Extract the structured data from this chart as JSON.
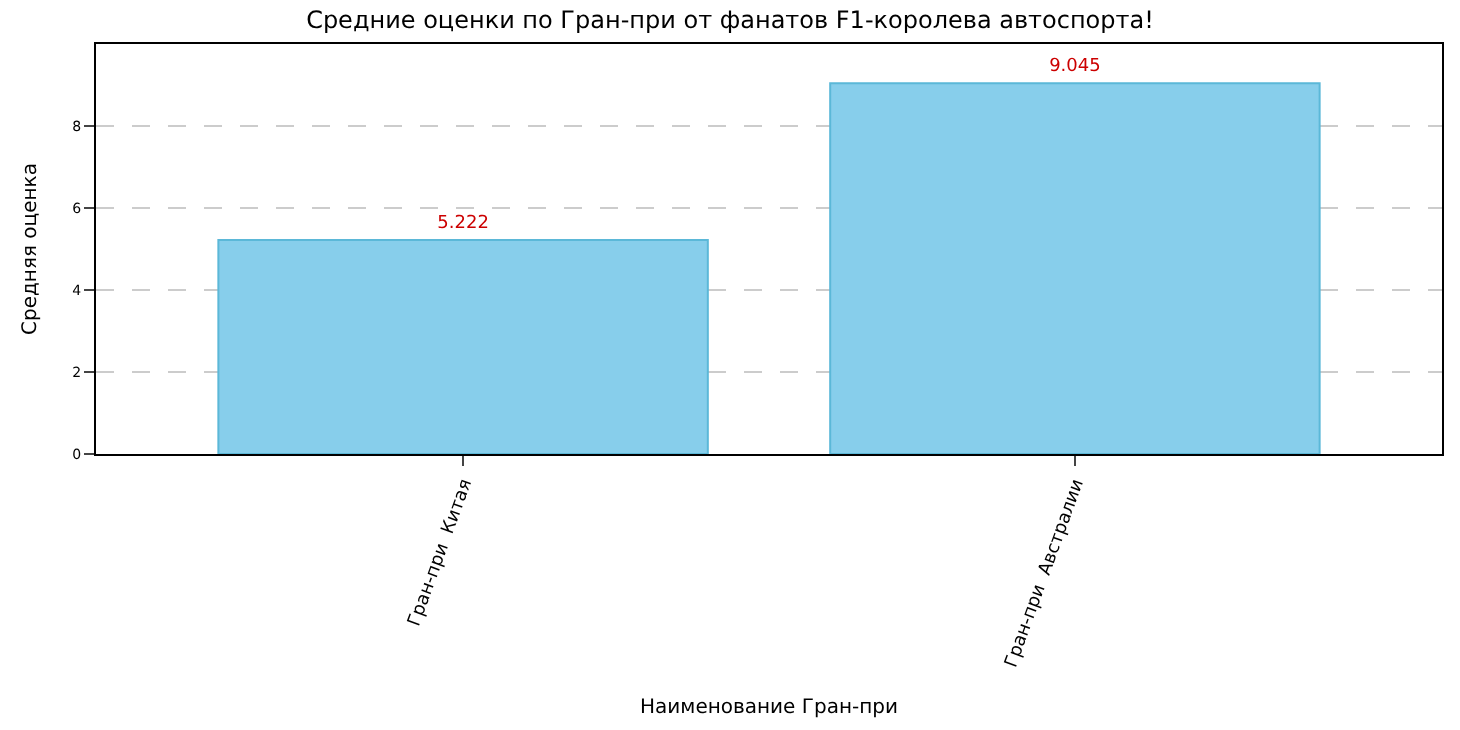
{
  "chart_data": {
    "type": "bar",
    "title": "Средние оценки по Гран-при от фанатов F1-королева автоспорта!",
    "xlabel": "Наименование Гран-при",
    "ylabel": "Средняя оценка",
    "categories": [
      "Гран-при  Китая",
      "Гран-при  Австралии"
    ],
    "values": [
      5.222,
      9.045
    ],
    "color": "#87ceeb",
    "data_labels": true,
    "ylim": [
      0,
      10
    ],
    "yticks": [
      0,
      2,
      4,
      6,
      8
    ],
    "grid": "y",
    "legend": false
  }
}
